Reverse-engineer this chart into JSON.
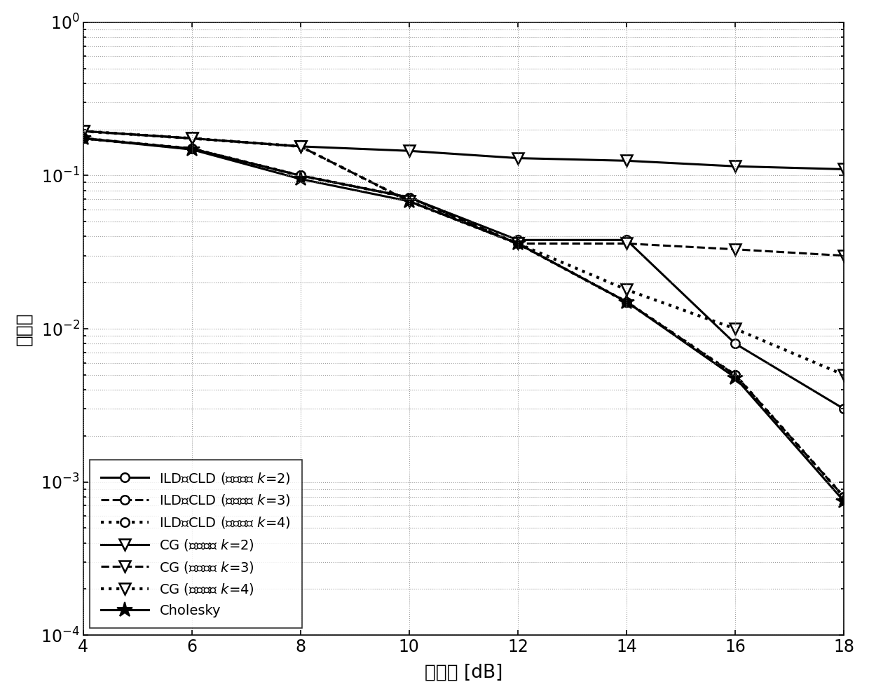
{
  "snr": [
    4,
    6,
    8,
    10,
    12,
    14,
    16,
    18
  ],
  "ILD_k2": [
    0.175,
    0.15,
    0.1,
    0.072,
    0.038,
    0.038,
    0.008,
    0.003
  ],
  "ILD_k3": [
    0.175,
    0.15,
    0.1,
    0.072,
    0.036,
    0.015,
    0.005,
    0.0008
  ],
  "ILD_k4": [
    0.175,
    0.15,
    0.1,
    0.072,
    0.036,
    0.015,
    0.005,
    0.0008
  ],
  "CG_k2": [
    0.195,
    0.175,
    0.155,
    0.145,
    0.13,
    0.125,
    0.115,
    0.11
  ],
  "CG_k3": [
    0.195,
    0.175,
    0.155,
    0.068,
    0.036,
    0.036,
    0.033,
    0.03
  ],
  "CG_k4": [
    0.195,
    0.175,
    0.155,
    0.068,
    0.036,
    0.018,
    0.01,
    0.005
  ],
  "Cholesky": [
    0.175,
    0.148,
    0.095,
    0.068,
    0.036,
    0.015,
    0.0048,
    0.00075
  ],
  "xlabel": "信噪比 [dB]",
  "ylabel": "误码率",
  "legend_ILD_k2": "ILD和CLD (迭代次数 $k$=2)",
  "legend_ILD_k3": "ILD和CLD (迭代次数 $k$=3)",
  "legend_ILD_k4": "ILD和CLD (迭代次数 $k$=4)",
  "legend_CG_k2": "CG (迭代次数 $k$=2)",
  "legend_CG_k3": "CG (迭代次数 $k$=3)",
  "legend_CG_k4": "CG (迭代次数 $k$=4)",
  "legend_Cholesky": "Cholesky"
}
